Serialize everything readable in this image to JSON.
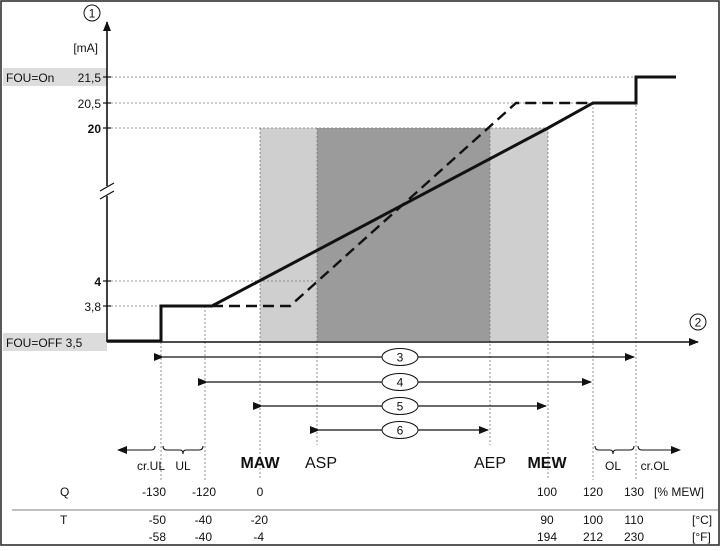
{
  "colors": {
    "background": "#ffffff",
    "border": "#222222",
    "shade_light": "#cfcfcf",
    "shade_dark": "#9b9b9b",
    "label_bg": "#dcdcdc",
    "line": "#111111",
    "grid": "#777777"
  },
  "y_axis": {
    "marker": "1",
    "unit": "[mA]",
    "labels": {
      "fou_on": "FOU=On",
      "v21_5": "21,5",
      "v20_5": "20,5",
      "v20": "20",
      "v4": "4",
      "v3_8": "3,8",
      "fou_off": "FOU=OFF 3,5"
    }
  },
  "x_axis": {
    "marker": "2"
  },
  "range_markers": [
    "3",
    "4",
    "5",
    "6"
  ],
  "zones": {
    "cr_ul": "cr.UL",
    "ul": "UL",
    "maw": "MAW",
    "asp": "ASP",
    "aep": "AEP",
    "mew": "MEW",
    "ol": "OL",
    "cr_ol": "cr.OL"
  },
  "table": {
    "q_label": "Q",
    "t_label": "T",
    "q_values": [
      "-130",
      "-120",
      "0",
      "100",
      "120",
      "130"
    ],
    "q_unit": "[% MEW]",
    "t_c_values": [
      "-50",
      "-40",
      "-20",
      "90",
      "100",
      "110"
    ],
    "t_c_unit": "[°C]",
    "t_f_values": [
      "-58",
      "-40",
      "-4",
      "194",
      "212",
      "230"
    ],
    "t_f_unit": "[°F]"
  }
}
